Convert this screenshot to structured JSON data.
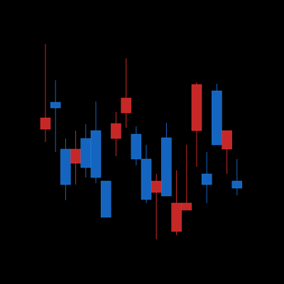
{
  "chart_data": {
    "type": "candlestick",
    "title": "",
    "xlabel": "",
    "ylabel": "",
    "axes_visible": false,
    "grid": false,
    "legend": "none",
    "ylim": [
      0,
      400
    ],
    "colors": {
      "up": "#1565c0",
      "down": "#c62828",
      "background": "#000000"
    },
    "series": [
      {
        "candles": [
          {
            "x": 1,
            "open": 234,
            "close": 218,
            "high": 338,
            "low": 200
          },
          {
            "x": 2,
            "open": 248,
            "close": 256,
            "high": 287,
            "low": 186
          },
          {
            "x": 3,
            "open": 140,
            "close": 190,
            "high": 205,
            "low": 118
          },
          {
            "x": 4,
            "open": 190,
            "close": 170,
            "high": 216,
            "low": 140
          },
          {
            "x": 5,
            "open": 164,
            "close": 205,
            "high": 225,
            "low": 150
          },
          {
            "x": 6,
            "open": 150,
            "close": 216,
            "high": 257,
            "low": 142
          },
          {
            "x": 7,
            "open": 94,
            "close": 145,
            "high": 145,
            "low": 94
          },
          {
            "x": 8,
            "open": 226,
            "close": 205,
            "high": 242,
            "low": 180
          },
          {
            "x": 9,
            "open": 262,
            "close": 241,
            "high": 318,
            "low": 220
          },
          {
            "x": 10,
            "open": 176,
            "close": 211,
            "high": 222,
            "low": 167
          },
          {
            "x": 11,
            "open": 119,
            "close": 176,
            "high": 196,
            "low": 114
          },
          {
            "x": 12,
            "open": 145,
            "close": 129,
            "high": 155,
            "low": 63
          },
          {
            "x": 13,
            "open": 124,
            "close": 206,
            "high": 227,
            "low": 124
          },
          {
            "x": 14,
            "open": 114,
            "close": 74,
            "high": 160,
            "low": 69
          },
          {
            "x": 15,
            "open": 114,
            "close": 104,
            "high": 196,
            "low": 104
          },
          {
            "x": 16,
            "open": 281,
            "close": 216,
            "high": 284,
            "low": 165
          },
          {
            "x": 17,
            "open": 140,
            "close": 155,
            "high": 186,
            "low": 114
          },
          {
            "x": 18,
            "open": 196,
            "close": 272,
            "high": 282,
            "low": 196
          },
          {
            "x": 19,
            "open": 216,
            "close": 190,
            "high": 216,
            "low": 155
          },
          {
            "x": 20,
            "open": 135,
            "close": 145,
            "high": 176,
            "low": 125
          }
        ]
      }
    ]
  }
}
